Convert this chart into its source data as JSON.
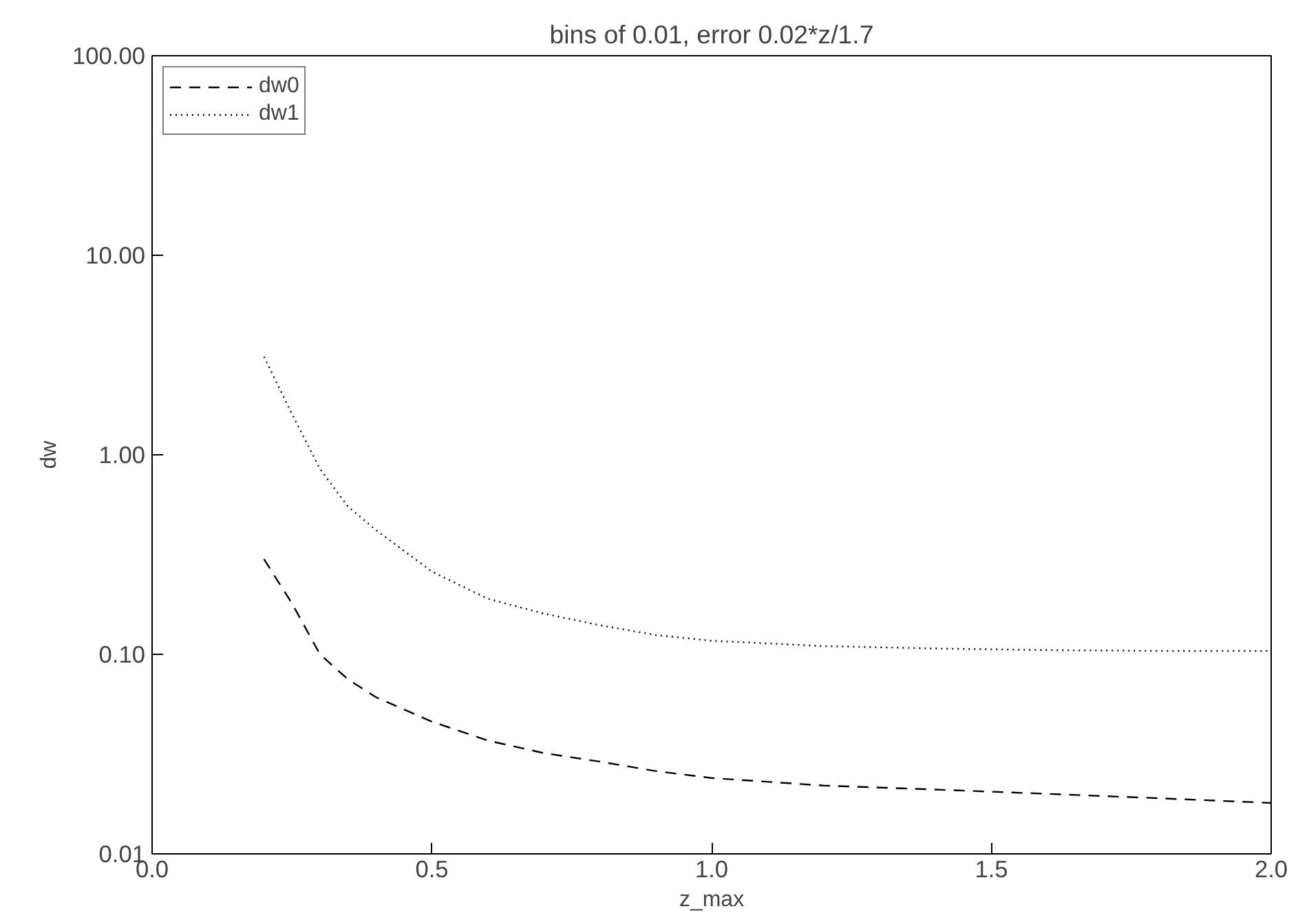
{
  "chart_data": {
    "type": "line",
    "title": "bins of 0.01, error 0.02*z/1.7",
    "xlabel": "z_max",
    "ylabel": "dw",
    "x": [
      0.2,
      0.25,
      0.3,
      0.35,
      0.4,
      0.5,
      0.6,
      0.7,
      0.8,
      0.9,
      1.0,
      1.2,
      1.4,
      1.6,
      1.8,
      2.0
    ],
    "series": [
      {
        "name": "dw0",
        "color": "#000000",
        "line_style": "dashed",
        "values": [
          0.3,
          0.18,
          0.1,
          0.075,
          0.061,
          0.046,
          0.037,
          0.032,
          0.029,
          0.026,
          0.024,
          0.022,
          0.021,
          0.02,
          0.019,
          0.018
        ]
      },
      {
        "name": "dw1",
        "color": "#000000",
        "line_style": "dotted",
        "values": [
          3.1,
          1.6,
          0.85,
          0.55,
          0.42,
          0.26,
          0.19,
          0.16,
          0.14,
          0.125,
          0.117,
          0.11,
          0.107,
          0.105,
          0.104,
          0.104
        ]
      }
    ],
    "xlim": [
      0.0,
      2.0
    ],
    "ylim": [
      0.01,
      100
    ],
    "xticks": [
      {
        "value": 0.0,
        "label": "0.0"
      },
      {
        "value": 0.5,
        "label": "0.5"
      },
      {
        "value": 1.0,
        "label": "1.0"
      },
      {
        "value": 1.5,
        "label": "1.5"
      },
      {
        "value": 2.0,
        "label": "2.0"
      }
    ],
    "yticks": [
      {
        "value": 0.01,
        "label": "0.01"
      },
      {
        "value": 0.1,
        "label": "0.10"
      },
      {
        "value": 1,
        "label": "1.00"
      },
      {
        "value": 10,
        "label": "10.00"
      },
      {
        "value": 100,
        "label": "100.00"
      }
    ],
    "log": "y",
    "grid": false,
    "legend": "top left"
  }
}
